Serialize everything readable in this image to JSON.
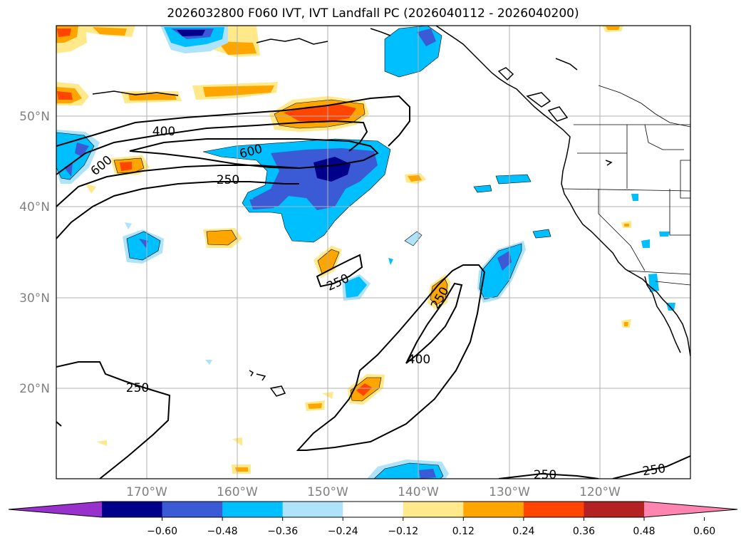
{
  "title": "2026032800 F060 IVT, IVT Landfall PC (2026040112 - 2026040200)",
  "map": {
    "lon_range": [
      -180,
      -110
    ],
    "lat_range": [
      10,
      60
    ],
    "lat_labels": [
      "50°N",
      "40°N",
      "30°N",
      "20°N"
    ],
    "lon_labels": [
      "170°W",
      "160°W",
      "150°W",
      "140°W",
      "130°W",
      "120°W"
    ],
    "contour_labels": [
      "400",
      "600",
      "600",
      "250",
      "250",
      "250",
      "400",
      "250",
      "250",
      "250"
    ],
    "contour_levels": [
      250,
      400,
      600
    ]
  },
  "colorbar": {
    "extend": "both",
    "colors": [
      "#9932cc",
      "#00008b",
      "#3b5bd6",
      "#00bfff",
      "#aee3fa",
      "#ffffff",
      "#ffe98a",
      "#ffa500",
      "#ff4500",
      "#b22222",
      "#ff85b0"
    ],
    "ticks": [
      "−0.60",
      "−0.48",
      "−0.36",
      "−0.24",
      "−0.12",
      "0.12",
      "0.24",
      "0.36",
      "0.48",
      "0.60"
    ]
  }
}
